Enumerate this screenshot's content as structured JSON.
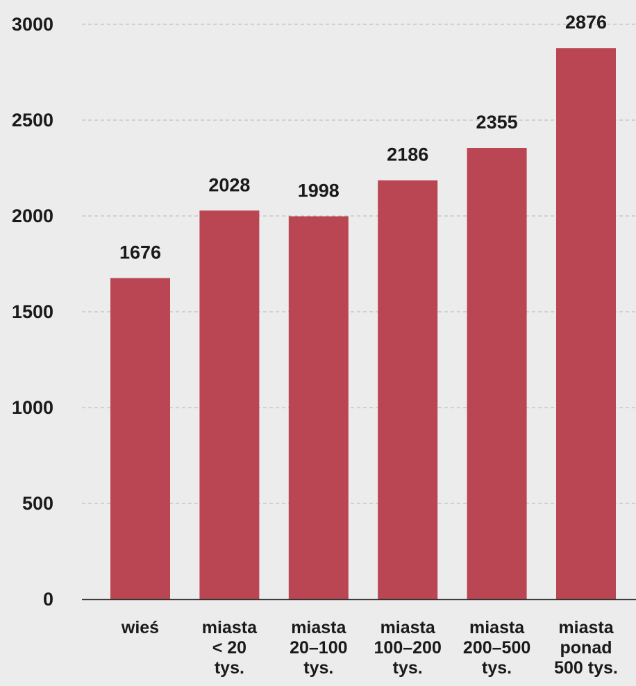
{
  "chart_data": {
    "type": "bar",
    "categories": [
      [
        "wieś"
      ],
      [
        "miasta",
        "< 20",
        "tys."
      ],
      [
        "miasta",
        "20–100",
        "tys."
      ],
      [
        "miasta",
        "100–200",
        "tys."
      ],
      [
        "miasta",
        "200–500",
        "tys."
      ],
      [
        "miasta",
        "ponad",
        "500 tys."
      ]
    ],
    "values": [
      1676,
      2028,
      1998,
      2186,
      2355,
      2876
    ],
    "data_labels": [
      "1676",
      "2028",
      "1998",
      "2186",
      "2355",
      "2876"
    ],
    "y_ticks": [
      0,
      500,
      1000,
      1500,
      2000,
      2500,
      3000
    ],
    "ylim": [
      0,
      3000
    ],
    "grid": true,
    "bar_color": "#b94652",
    "grid_color": "#b5b5b5",
    "axis_color": "#333333",
    "background": "#ececec"
  }
}
